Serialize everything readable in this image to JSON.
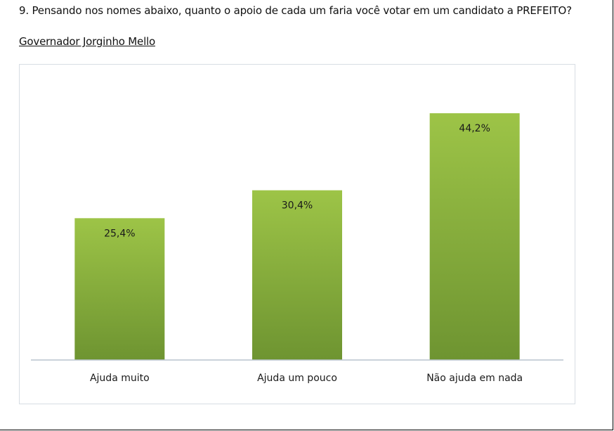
{
  "question": "9. Pensando nos nomes abaixo, quanto o apoio de cada um faria você votar em um candidato a PREFEITO?",
  "subtitle": "Governador Jorginho Mello",
  "colors": {
    "bar_top": "#9dc447",
    "bar_bottom": "#6e9431",
    "axis": "#b8c4ce",
    "chart_border": "#d7dde3"
  },
  "chart_data": {
    "type": "bar",
    "title": "",
    "xlabel": "",
    "ylabel": "",
    "ylim": [
      0,
      50
    ],
    "grid": false,
    "legend": "none",
    "categories": [
      "Ajuda muito",
      "Ajuda um pouco",
      "Não ajuda em nada"
    ],
    "values": [
      25.4,
      30.4,
      44.2
    ],
    "value_labels": [
      "25,4%",
      "30,4%",
      "44,2%"
    ]
  }
}
